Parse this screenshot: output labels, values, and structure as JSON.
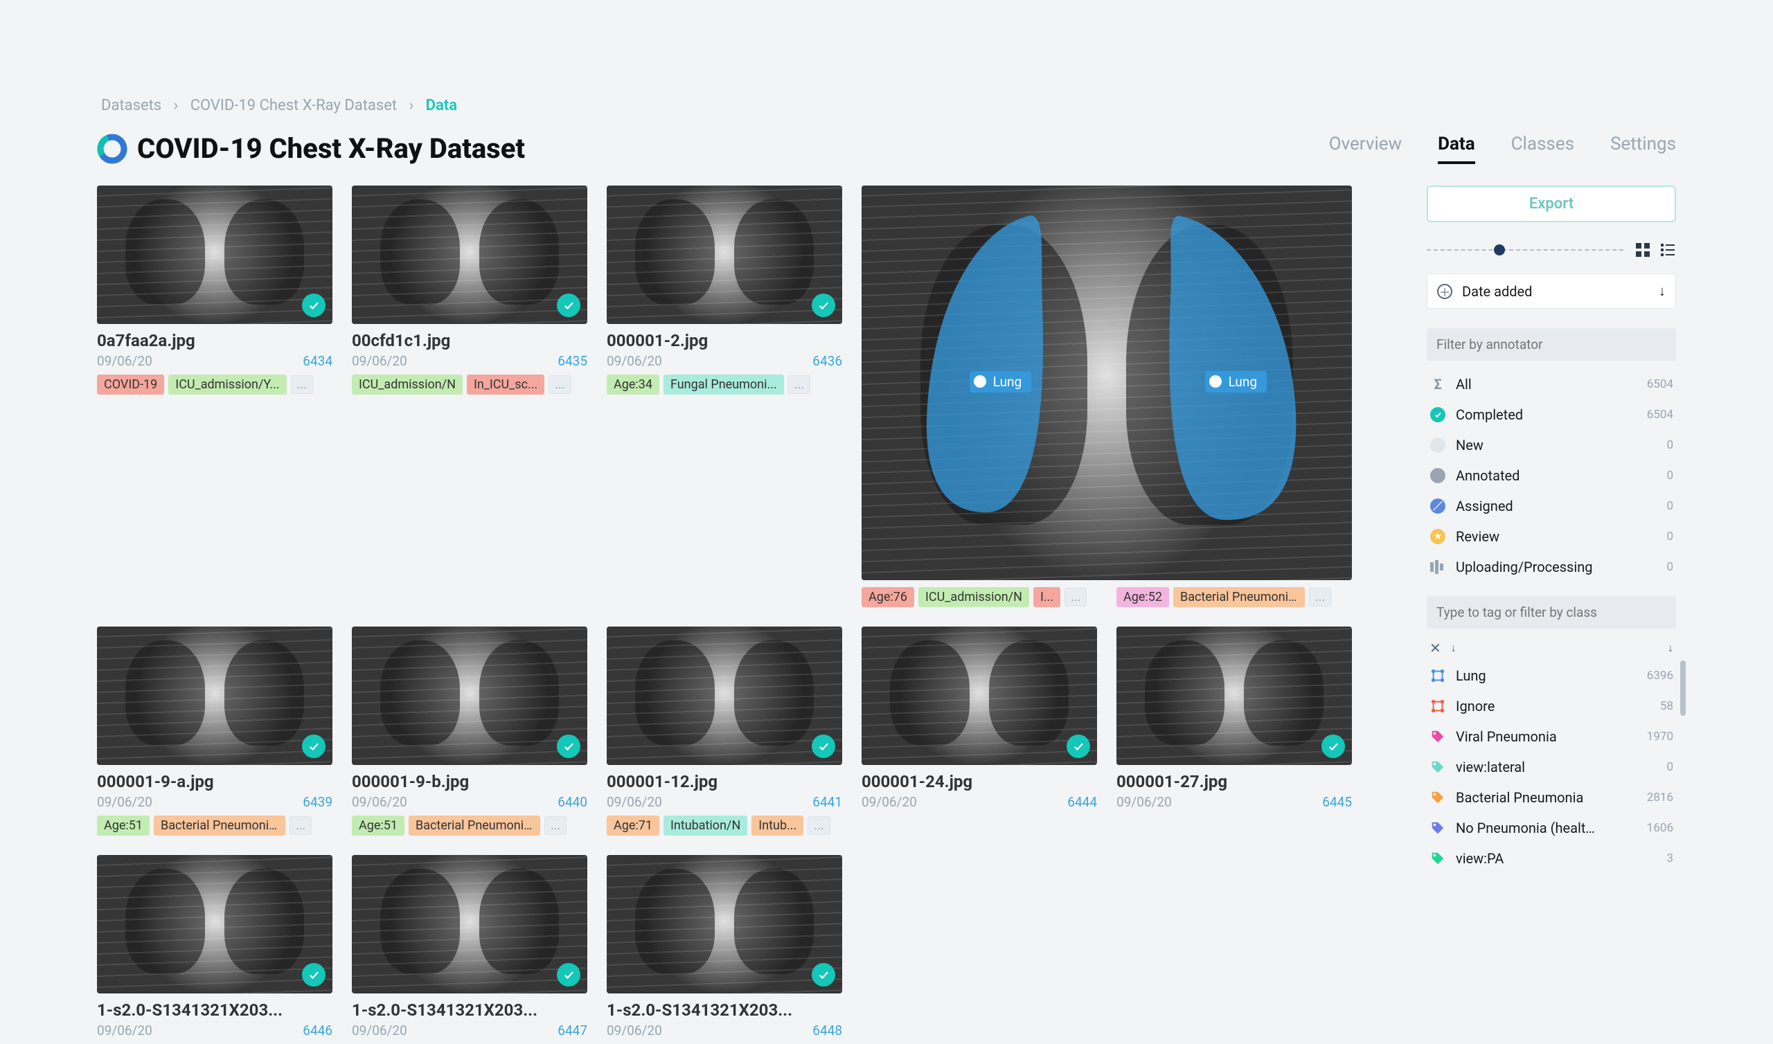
{
  "breadcrumb": {
    "root": "Datasets",
    "mid": "COVID-19 Chest X-Ray Dataset",
    "leaf": "Data"
  },
  "title": "COVID-19 Chest X-Ray Dataset",
  "tabs": [
    {
      "label": "Overview",
      "active": false
    },
    {
      "label": "Data",
      "active": true
    },
    {
      "label": "Classes",
      "active": false
    },
    {
      "label": "Settings",
      "active": false
    }
  ],
  "export_label": "Export",
  "sort": {
    "label": "Date added"
  },
  "filter_annotator_placeholder": "Filter by annotator",
  "filter_class_placeholder": "Type to tag or filter by class",
  "lung_label": "Lung",
  "statuses": [
    {
      "icon": "sigma",
      "label": "All",
      "count": "6504",
      "color": "#8a96a3"
    },
    {
      "icon": "check",
      "label": "Completed",
      "count": "6504",
      "color": "#14c7b8"
    },
    {
      "icon": "dot",
      "label": "New",
      "count": "0",
      "color": "#e1e6eb"
    },
    {
      "icon": "dot",
      "label": "Annotated",
      "count": "0",
      "color": "#9aa5b1"
    },
    {
      "icon": "slash",
      "label": "Assigned",
      "count": "0",
      "color": "#5e87e0"
    },
    {
      "icon": "star",
      "label": "Review",
      "count": "0",
      "color": "#f6c453"
    },
    {
      "icon": "bars",
      "label": "Uploading/Processing",
      "count": "0",
      "color": "#9aa5b1"
    }
  ],
  "classes": [
    {
      "icon": "poly",
      "label": "Lung",
      "count": "6396",
      "color": "#4a90e2"
    },
    {
      "icon": "poly",
      "label": "Ignore",
      "count": "58",
      "color": "#f25d3f"
    },
    {
      "icon": "tag",
      "label": "Viral Pneumonia",
      "count": "1970",
      "color": "#e84ba8"
    },
    {
      "icon": "tag",
      "label": "view:lateral",
      "count": "0",
      "color": "#6dd8c9"
    },
    {
      "icon": "tag",
      "label": "Bacterial Pneumonia",
      "count": "2816",
      "color": "#f5a142"
    },
    {
      "icon": "tag",
      "label": "No Pneumonia (health...",
      "count": "1606",
      "color": "#6d7be8"
    },
    {
      "icon": "tag",
      "label": "view:PA",
      "count": "3",
      "color": "#1fd693"
    }
  ],
  "tag_colors": {
    "red": "#f5a79d",
    "green": "#c3ecb2",
    "teal": "#a9ecdd",
    "orange": "#f9c59a",
    "magenta": "#f3b5e0",
    "gray": "#e8edf2"
  },
  "cards": [
    {
      "file": "0a7faa2a.jpg",
      "date": "09/06/20",
      "id": "6434",
      "tags": [
        {
          "t": "COVID-19",
          "c": "red"
        },
        {
          "t": "ICU_admission/Y...",
          "c": "green"
        }
      ],
      "more": true
    },
    {
      "file": "00cfd1c1.jpg",
      "date": "09/06/20",
      "id": "6435",
      "tags": [
        {
          "t": "ICU_admission/N",
          "c": "green"
        },
        {
          "t": "In_ICU_sc...",
          "c": "red"
        }
      ],
      "more": true
    },
    {
      "file": "000001-2.jpg",
      "date": "09/06/20",
      "id": "6436",
      "tags": [
        {
          "t": "Age:34",
          "c": "green"
        },
        {
          "t": "Fungal Pneumoni...",
          "c": "teal"
        }
      ],
      "more": true
    },
    {
      "big": true,
      "tags": [
        {
          "t": "Age:76",
          "c": "red"
        },
        {
          "t": "ICU_admission/N",
          "c": "green"
        },
        {
          "t": "I...",
          "c": "red"
        }
      ],
      "more": true,
      "second": {
        "file": "",
        "date": "",
        "id": "",
        "tags": [
          {
            "t": "Age:52",
            "c": "magenta"
          },
          {
            "t": "Bacterial Pneumoni...",
            "c": "orange"
          }
        ],
        "more": true
      }
    },
    {
      "file": "000001-9-a.jpg",
      "date": "09/06/20",
      "id": "6439",
      "tags": [
        {
          "t": "Age:51",
          "c": "green"
        },
        {
          "t": "Bacterial Pneumoni...",
          "c": "orange"
        }
      ],
      "more": true
    },
    {
      "file": "000001-9-b.jpg",
      "date": "09/06/20",
      "id": "6440",
      "tags": [
        {
          "t": "Age:51",
          "c": "green"
        },
        {
          "t": "Bacterial Pneumoni...",
          "c": "orange"
        }
      ],
      "more": true
    },
    {
      "file": "000001-12.jpg",
      "date": "09/06/20",
      "id": "6441",
      "tags": [
        {
          "t": "Age:71",
          "c": "orange"
        },
        {
          "t": "Intubation/N",
          "c": "teal"
        },
        {
          "t": "Intub...",
          "c": "orange"
        }
      ],
      "more": true
    },
    {
      "file": "000001-24.jpg",
      "date": "09/06/20",
      "id": "6444"
    },
    {
      "file": "000001-27.jpg",
      "date": "09/06/20",
      "id": "6445"
    },
    {
      "file": "1-s2.0-S1341321X203...",
      "date": "09/06/20",
      "id": "6446"
    },
    {
      "file": "1-s2.0-S1341321X203...",
      "date": "09/06/20",
      "id": "6447"
    },
    {
      "file": "1-s2.0-S1341321X203...",
      "date": "09/06/20",
      "id": "6448"
    }
  ]
}
